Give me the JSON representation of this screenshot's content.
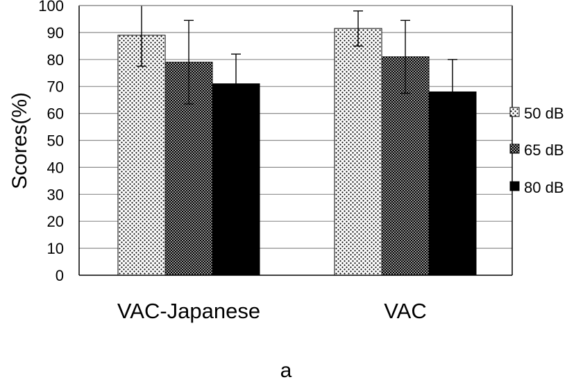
{
  "chart_data": {
    "type": "bar",
    "title": "",
    "xlabel": "",
    "ylabel": "Scores(%)",
    "ylim": [
      0,
      100
    ],
    "ytick_step": 10,
    "grid": true,
    "legend_position": "right",
    "categories": [
      "VAC-Japanese",
      "VAC"
    ],
    "series": [
      {
        "name": "50 dB",
        "pattern": "sparse-dots",
        "values": [
          89,
          91.5
        ],
        "error": [
          11.5,
          6.5
        ]
      },
      {
        "name": "65 dB",
        "pattern": "dense-dots",
        "values": [
          79,
          81
        ],
        "error": [
          15.5,
          13.5
        ]
      },
      {
        "name": "80 dB",
        "pattern": "solid",
        "values": [
          71,
          68
        ],
        "error": [
          11,
          12
        ]
      }
    ],
    "panel_label": "a",
    "colors": {
      "bar_dark": "#000000",
      "bar_light": "#ffffff",
      "grid": "#8c8c8c",
      "axis": "#000000"
    }
  }
}
